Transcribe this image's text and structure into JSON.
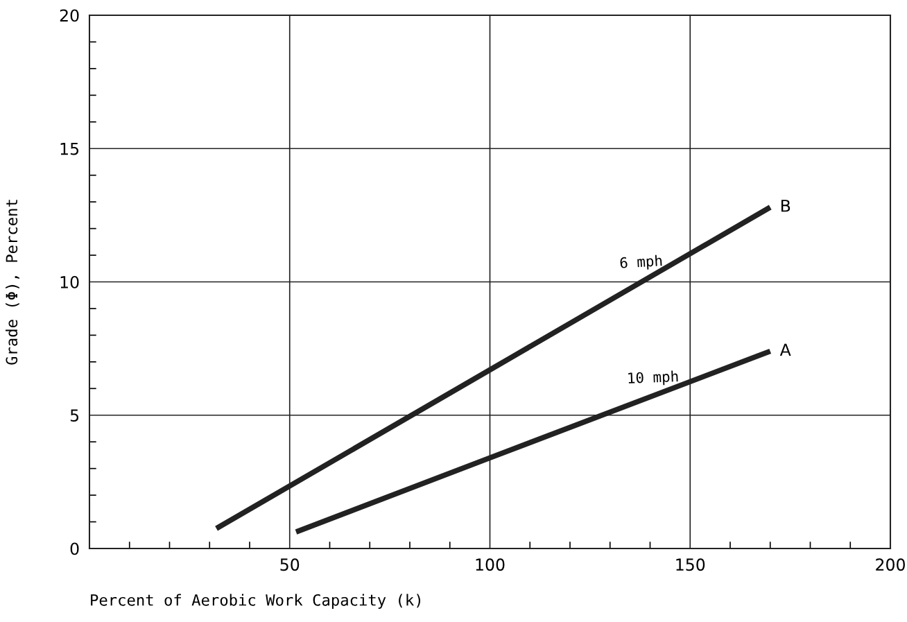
{
  "chart_data": {
    "type": "line",
    "xlabel": "Percent of Aerobic Work Capacity (k)",
    "ylabel": "Grade (Φ), Percent",
    "xlim": [
      0,
      200
    ],
    "ylim": [
      0,
      20
    ],
    "xticks": [
      {
        "value": 0,
        "label": null
      },
      50,
      100,
      150,
      200
    ],
    "yticks": [
      0,
      5,
      10,
      15,
      20
    ],
    "grid": true,
    "legend": false,
    "marker": "none",
    "line_style": "solid",
    "series": [
      {
        "name": "6 mph",
        "color": "#222222",
        "x": [
          31.7,
          100,
          170
        ],
        "values": [
          0.75,
          6.7,
          12.8
        ]
      },
      {
        "name": "10 mph",
        "color": "#222222",
        "x": [
          51.6,
          100,
          170
        ],
        "values": [
          0.62,
          3.4,
          7.4
        ]
      }
    ],
    "annotations": [
      {
        "text": "B",
        "x": 170,
        "y": 12.8
      },
      {
        "text": "A",
        "x": 170,
        "y": 7.4
      }
    ]
  }
}
